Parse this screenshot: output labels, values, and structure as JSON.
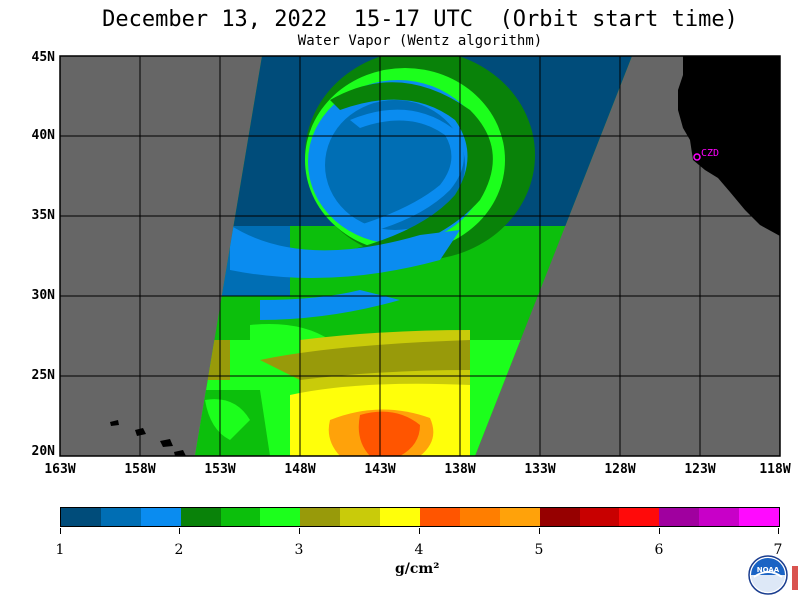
{
  "title": "December 13, 2022  15-17 UTC  (Orbit start time)",
  "subtitle": "Water Vapor (Wentz algorithm)",
  "lat_labels": [
    "45N",
    "40N",
    "35N",
    "30N",
    "25N",
    "20N"
  ],
  "lon_labels": [
    "163W",
    "158W",
    "153W",
    "148W",
    "143W",
    "138W",
    "133W",
    "128W",
    "123W",
    "118W"
  ],
  "station_label": "CZD",
  "colorbar": {
    "colors": [
      "#004c7a",
      "#006eb4",
      "#0a8cf0",
      "#098209",
      "#0cbf0c",
      "#1cff1c",
      "#989a0a",
      "#c9cb0a",
      "#ffff0a",
      "#ff5500",
      "#ff7e00",
      "#ffa20a",
      "#960000",
      "#c80000",
      "#ff0a0a",
      "#a0009f",
      "#c800c8",
      "#ff0aff"
    ],
    "tick_labels": [
      "1",
      "2",
      "3",
      "4",
      "5",
      "6",
      "7"
    ]
  },
  "unit_label": "g/cm²",
  "logo_text": "NOAA",
  "colors": {
    "no_data": "#666666",
    "land": "#000000",
    "grid": "#000000",
    "station": "#ff00ff"
  }
}
